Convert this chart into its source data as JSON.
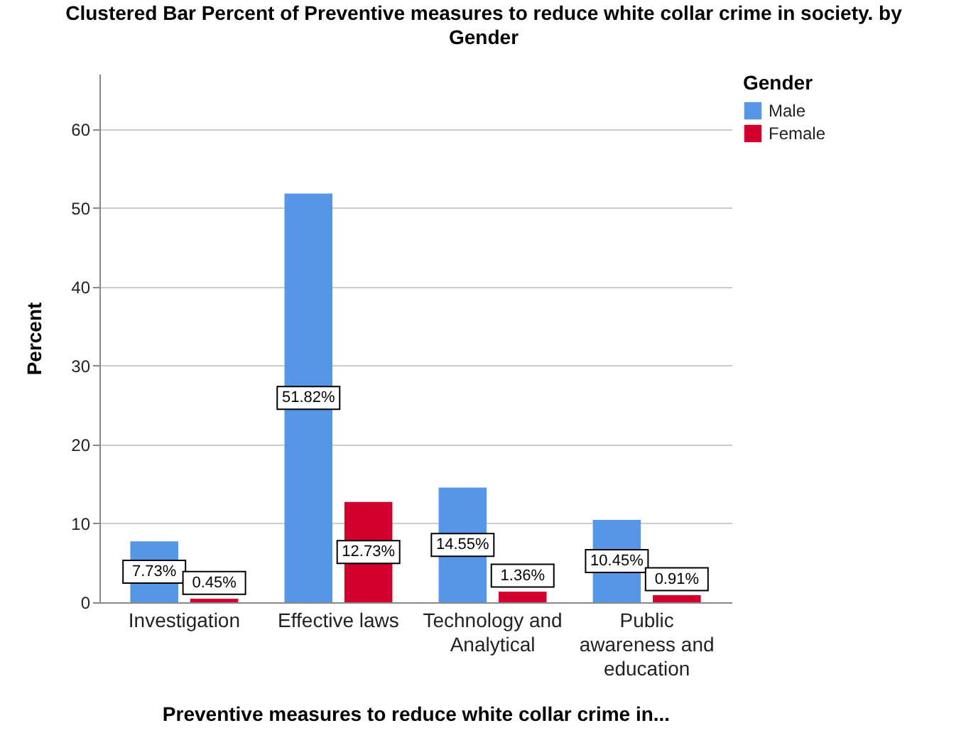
{
  "chart_data": {
    "type": "bar",
    "title": "Clustered Bar Percent of Preventive measures to reduce white collar crime in society. by Gender",
    "xlabel": "Preventive measures to reduce white collar crime in...",
    "ylabel": "Percent",
    "legend_title": "Gender",
    "categories": [
      "Investigation",
      "Effective laws",
      "Technology and Analytical",
      "Public awareness and education"
    ],
    "series": [
      {
        "name": "Male",
        "color": "#5596e6",
        "values": [
          7.73,
          51.82,
          14.55,
          10.45
        ],
        "value_labels": [
          "7.73%",
          "51.82%",
          "14.55%",
          "10.45%"
        ]
      },
      {
        "name": "Female",
        "color": "#d1002e",
        "values": [
          0.45,
          12.73,
          1.36,
          0.91
        ],
        "value_labels": [
          "0.45%",
          "12.73%",
          "1.36%",
          "0.91%"
        ]
      }
    ],
    "ylim": [
      0,
      67
    ],
    "yticks": [
      0,
      10,
      20,
      30,
      40,
      50,
      60
    ],
    "grid": "y",
    "legend": "top right"
  }
}
